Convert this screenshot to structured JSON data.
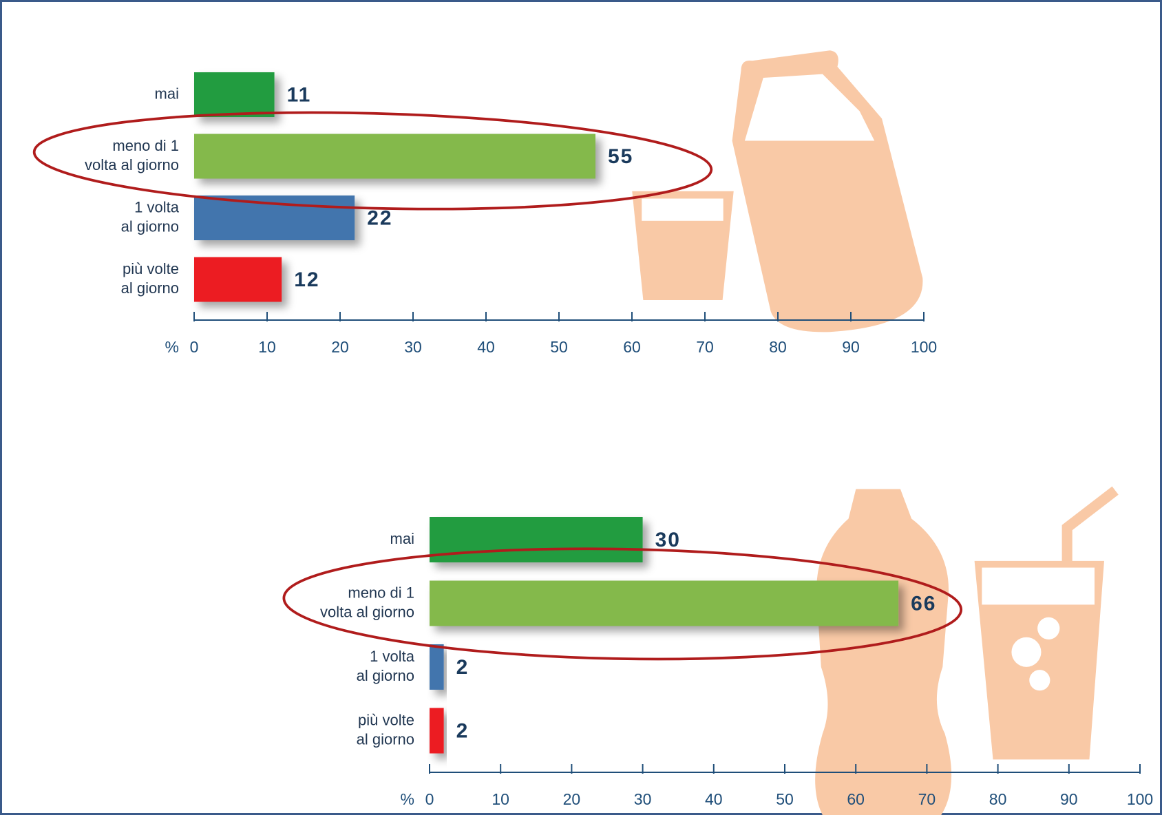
{
  "chart_data": [
    {
      "type": "bar",
      "orientation": "horizontal",
      "categories": [
        [
          "mai"
        ],
        [
          "meno di 1",
          "volta al giorno"
        ],
        [
          "1 volta",
          "al giorno"
        ],
        [
          "più volte",
          "al giorno"
        ]
      ],
      "values": [
        11,
        55,
        22,
        12
      ],
      "colors": [
        "#229c41",
        "#84b94b",
        "#4275ad",
        "#ec1c24"
      ],
      "x_label": "%",
      "xlim": [
        0,
        100
      ],
      "xticks": [
        0,
        10,
        20,
        30,
        40,
        50,
        60,
        70,
        80,
        90,
        100
      ]
    },
    {
      "type": "bar",
      "orientation": "horizontal",
      "categories": [
        [
          "mai"
        ],
        [
          "meno di 1",
          "volta al giorno"
        ],
        [
          "1 volta",
          "al giorno"
        ],
        [
          "più volte",
          "al giorno"
        ]
      ],
      "values": [
        30,
        66,
        2,
        2
      ],
      "colors": [
        "#229c41",
        "#84b94b",
        "#4275ad",
        "#ec1c24"
      ],
      "x_label": "%",
      "xlim": [
        0,
        100
      ],
      "xticks": [
        0,
        10,
        20,
        30,
        40,
        50,
        60,
        70,
        80,
        90,
        100
      ]
    }
  ]
}
